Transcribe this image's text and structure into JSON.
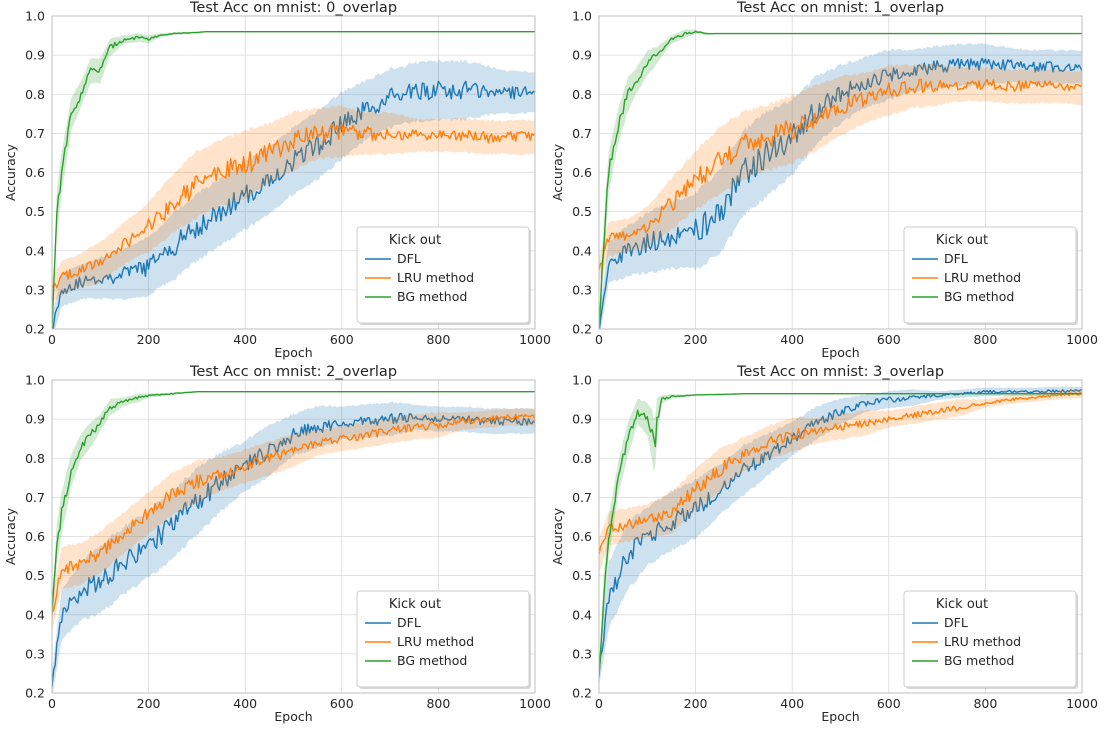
{
  "colors": {
    "dfl": "#1f77b4",
    "lru": "#ff7f0e",
    "bg": "#2ca02c",
    "grid": "#d9d9d9",
    "axes": "#bfbfbf"
  },
  "chart_data": [
    {
      "type": "line",
      "title": "Test Acc on mnist: 0_overlap",
      "xlabel": "Epoch",
      "ylabel": "Accuracy",
      "xlim": [
        0,
        1000
      ],
      "ylim": [
        0.2,
        1.0
      ],
      "xticks": [
        0,
        200,
        400,
        600,
        800,
        1000
      ],
      "yticks": [
        0.2,
        0.3,
        0.4,
        0.5,
        0.6,
        0.7,
        0.8,
        0.9,
        1.0
      ],
      "grid": true,
      "legend": {
        "title": "Kick out",
        "position": "lower right"
      },
      "series": [
        {
          "name": "DFL",
          "color_key": "dfl",
          "x": [
            0,
            20,
            60,
            100,
            150,
            200,
            250,
            300,
            350,
            400,
            450,
            500,
            550,
            600,
            650,
            700,
            750,
            800,
            850,
            900,
            950,
            1000
          ],
          "y": [
            0.2,
            0.3,
            0.32,
            0.33,
            0.34,
            0.36,
            0.41,
            0.46,
            0.5,
            0.54,
            0.58,
            0.63,
            0.67,
            0.72,
            0.76,
            0.79,
            0.805,
            0.81,
            0.81,
            0.81,
            0.805,
            0.805
          ],
          "band": [
            0.03,
            0.04,
            0.04,
            0.05,
            0.06,
            0.07,
            0.08,
            0.08,
            0.08,
            0.08,
            0.08,
            0.08,
            0.08,
            0.08,
            0.07,
            0.07,
            0.07,
            0.07,
            0.07,
            0.06,
            0.05,
            0.05
          ]
        },
        {
          "name": "LRU method",
          "color_key": "lru",
          "x": [
            0,
            20,
            60,
            100,
            150,
            200,
            250,
            300,
            350,
            400,
            450,
            500,
            550,
            600,
            650,
            700,
            750,
            800,
            850,
            900,
            950,
            1000
          ],
          "y": [
            0.3,
            0.33,
            0.35,
            0.37,
            0.42,
            0.46,
            0.52,
            0.57,
            0.6,
            0.62,
            0.65,
            0.68,
            0.7,
            0.705,
            0.7,
            0.7,
            0.695,
            0.695,
            0.695,
            0.69,
            0.69,
            0.69
          ],
          "band": [
            0.03,
            0.04,
            0.04,
            0.05,
            0.05,
            0.06,
            0.07,
            0.08,
            0.08,
            0.08,
            0.07,
            0.07,
            0.06,
            0.06,
            0.05,
            0.05,
            0.04,
            0.04,
            0.04,
            0.04,
            0.04,
            0.04
          ]
        },
        {
          "name": "BG method",
          "color_key": "bg",
          "x": [
            0,
            10,
            20,
            40,
            60,
            80,
            100,
            120,
            150,
            180,
            200,
            220,
            250,
            300,
            320,
            400,
            600,
            800,
            1000
          ],
          "y": [
            0.2,
            0.5,
            0.6,
            0.75,
            0.8,
            0.86,
            0.86,
            0.92,
            0.94,
            0.945,
            0.94,
            0.95,
            0.955,
            0.958,
            0.96,
            0.96,
            0.96,
            0.96,
            0.96
          ],
          "band": [
            0.02,
            0.05,
            0.05,
            0.04,
            0.03,
            0.03,
            0.03,
            0.02,
            0.01,
            0.01,
            0.01,
            0.005,
            0.003,
            0.002,
            0,
            0,
            0,
            0,
            0
          ]
        }
      ]
    },
    {
      "type": "line",
      "title": "Test Acc on mnist: 1_overlap",
      "xlabel": "Epoch",
      "ylabel": "Accuracy",
      "xlim": [
        0,
        1000
      ],
      "ylim": [
        0.2,
        1.0
      ],
      "xticks": [
        0,
        200,
        400,
        600,
        800,
        1000
      ],
      "yticks": [
        0.2,
        0.3,
        0.4,
        0.5,
        0.6,
        0.7,
        0.8,
        0.9,
        1.0
      ],
      "grid": true,
      "legend": {
        "title": "Kick out",
        "position": "lower right"
      },
      "series": [
        {
          "name": "DFL",
          "color_key": "dfl",
          "x": [
            0,
            20,
            60,
            100,
            150,
            200,
            250,
            300,
            350,
            400,
            450,
            500,
            550,
            600,
            650,
            700,
            750,
            800,
            850,
            900,
            950,
            1000
          ],
          "y": [
            0.2,
            0.37,
            0.4,
            0.42,
            0.44,
            0.45,
            0.5,
            0.6,
            0.65,
            0.69,
            0.76,
            0.8,
            0.83,
            0.85,
            0.86,
            0.87,
            0.875,
            0.875,
            0.875,
            0.87,
            0.87,
            0.87
          ],
          "band": [
            0.03,
            0.05,
            0.06,
            0.07,
            0.08,
            0.09,
            0.1,
            0.1,
            0.1,
            0.09,
            0.08,
            0.07,
            0.06,
            0.06,
            0.05,
            0.05,
            0.05,
            0.05,
            0.04,
            0.04,
            0.04,
            0.04
          ]
        },
        {
          "name": "LRU method",
          "color_key": "lru",
          "x": [
            0,
            20,
            60,
            100,
            150,
            200,
            250,
            300,
            350,
            400,
            450,
            500,
            550,
            600,
            650,
            700,
            750,
            800,
            850,
            900,
            950,
            1000
          ],
          "y": [
            0.35,
            0.43,
            0.44,
            0.46,
            0.52,
            0.58,
            0.63,
            0.67,
            0.69,
            0.71,
            0.74,
            0.77,
            0.79,
            0.81,
            0.82,
            0.825,
            0.825,
            0.825,
            0.82,
            0.82,
            0.82,
            0.815
          ],
          "band": [
            0.03,
            0.04,
            0.04,
            0.05,
            0.06,
            0.07,
            0.08,
            0.08,
            0.08,
            0.08,
            0.08,
            0.07,
            0.06,
            0.06,
            0.05,
            0.05,
            0.04,
            0.04,
            0.04,
            0.04,
            0.04,
            0.04
          ]
        },
        {
          "name": "BG method",
          "color_key": "bg",
          "x": [
            0,
            10,
            20,
            40,
            60,
            80,
            100,
            120,
            150,
            180,
            200,
            220,
            240,
            260,
            300,
            400,
            600,
            800,
            1000
          ],
          "y": [
            0.2,
            0.42,
            0.6,
            0.72,
            0.8,
            0.84,
            0.88,
            0.9,
            0.94,
            0.955,
            0.96,
            0.955,
            0.955,
            0.955,
            0.955,
            0.955,
            0.955,
            0.955,
            0.955
          ],
          "band": [
            0.02,
            0.05,
            0.05,
            0.04,
            0.04,
            0.03,
            0.03,
            0.02,
            0.01,
            0.01,
            0.005,
            0.003,
            0,
            0,
            0,
            0,
            0,
            0,
            0
          ]
        }
      ]
    },
    {
      "type": "line",
      "title": "Test Acc on mnist: 2_overlap",
      "xlabel": "Epoch",
      "ylabel": "Accuracy",
      "xlim": [
        0,
        1000
      ],
      "ylim": [
        0.2,
        1.0
      ],
      "xticks": [
        0,
        200,
        400,
        600,
        800,
        1000
      ],
      "yticks": [
        0.2,
        0.3,
        0.4,
        0.5,
        0.6,
        0.7,
        0.8,
        0.9,
        1.0
      ],
      "grid": true,
      "legend": {
        "title": "Kick out",
        "position": "lower right"
      },
      "series": [
        {
          "name": "DFL",
          "color_key": "dfl",
          "x": [
            0,
            20,
            60,
            100,
            150,
            200,
            250,
            300,
            350,
            400,
            450,
            500,
            550,
            600,
            650,
            700,
            750,
            800,
            850,
            900,
            950,
            1000
          ],
          "y": [
            0.22,
            0.4,
            0.46,
            0.49,
            0.54,
            0.58,
            0.63,
            0.69,
            0.74,
            0.78,
            0.82,
            0.86,
            0.88,
            0.89,
            0.895,
            0.9,
            0.905,
            0.9,
            0.9,
            0.895,
            0.895,
            0.895
          ],
          "band": [
            0.03,
            0.06,
            0.07,
            0.08,
            0.08,
            0.08,
            0.08,
            0.08,
            0.07,
            0.06,
            0.06,
            0.05,
            0.05,
            0.04,
            0.04,
            0.04,
            0.03,
            0.03,
            0.03,
            0.03,
            0.03,
            0.03
          ]
        },
        {
          "name": "LRU method",
          "color_key": "lru",
          "x": [
            0,
            20,
            60,
            100,
            150,
            200,
            250,
            300,
            350,
            400,
            450,
            500,
            550,
            600,
            650,
            700,
            750,
            800,
            850,
            900,
            950,
            1000
          ],
          "y": [
            0.4,
            0.52,
            0.53,
            0.56,
            0.61,
            0.66,
            0.71,
            0.74,
            0.76,
            0.78,
            0.8,
            0.82,
            0.84,
            0.85,
            0.86,
            0.87,
            0.88,
            0.885,
            0.895,
            0.9,
            0.905,
            0.905
          ],
          "band": [
            0.04,
            0.05,
            0.05,
            0.05,
            0.05,
            0.05,
            0.05,
            0.05,
            0.04,
            0.04,
            0.04,
            0.04,
            0.03,
            0.03,
            0.03,
            0.03,
            0.03,
            0.03,
            0.02,
            0.02,
            0.02,
            0.02
          ]
        },
        {
          "name": "BG method",
          "color_key": "bg",
          "x": [
            0,
            10,
            20,
            40,
            60,
            80,
            100,
            120,
            150,
            180,
            200,
            250,
            300,
            400,
            600,
            800,
            1000
          ],
          "y": [
            0.4,
            0.58,
            0.66,
            0.77,
            0.83,
            0.86,
            0.89,
            0.93,
            0.945,
            0.955,
            0.96,
            0.965,
            0.97,
            0.97,
            0.97,
            0.97,
            0.97
          ],
          "band": [
            0.03,
            0.05,
            0.05,
            0.04,
            0.03,
            0.03,
            0.02,
            0.02,
            0.01,
            0.01,
            0.005,
            0.003,
            0,
            0,
            0,
            0,
            0
          ]
        }
      ]
    },
    {
      "type": "line",
      "title": "Test Acc on mnist: 3_overlap",
      "xlabel": "Epoch",
      "ylabel": "Accuracy",
      "xlim": [
        0,
        1000
      ],
      "ylim": [
        0.2,
        1.0
      ],
      "xticks": [
        0,
        200,
        400,
        600,
        800,
        1000
      ],
      "yticks": [
        0.2,
        0.3,
        0.4,
        0.5,
        0.6,
        0.7,
        0.8,
        0.9,
        1.0
      ],
      "grid": true,
      "legend": {
        "title": "Kick out",
        "position": "lower right"
      },
      "series": [
        {
          "name": "DFL",
          "color_key": "dfl",
          "x": [
            0,
            20,
            60,
            100,
            150,
            200,
            250,
            300,
            350,
            400,
            450,
            500,
            550,
            600,
            650,
            700,
            750,
            800,
            850,
            900,
            950,
            1000
          ],
          "y": [
            0.25,
            0.45,
            0.55,
            0.6,
            0.64,
            0.67,
            0.72,
            0.77,
            0.81,
            0.85,
            0.89,
            0.92,
            0.94,
            0.95,
            0.955,
            0.96,
            0.965,
            0.97,
            0.97,
            0.97,
            0.972,
            0.972
          ],
          "band": [
            0.03,
            0.08,
            0.08,
            0.07,
            0.07,
            0.07,
            0.06,
            0.06,
            0.05,
            0.04,
            0.04,
            0.03,
            0.02,
            0.02,
            0.02,
            0.01,
            0.01,
            0.01,
            0.01,
            0.01,
            0.01,
            0.01
          ]
        },
        {
          "name": "LRU method",
          "color_key": "lru",
          "x": [
            0,
            20,
            60,
            100,
            150,
            200,
            250,
            300,
            350,
            400,
            450,
            500,
            550,
            600,
            650,
            700,
            750,
            800,
            850,
            900,
            950,
            1000
          ],
          "y": [
            0.55,
            0.62,
            0.63,
            0.64,
            0.66,
            0.72,
            0.77,
            0.81,
            0.84,
            0.86,
            0.87,
            0.88,
            0.89,
            0.9,
            0.91,
            0.92,
            0.93,
            0.94,
            0.95,
            0.955,
            0.962,
            0.965
          ],
          "band": [
            0.04,
            0.04,
            0.04,
            0.04,
            0.05,
            0.05,
            0.05,
            0.04,
            0.04,
            0.04,
            0.03,
            0.03,
            0.03,
            0.02,
            0.02,
            0.02,
            0.02,
            0.01,
            0.01,
            0.01,
            0.01,
            0.01
          ]
        },
        {
          "name": "BG method",
          "color_key": "bg",
          "x": [
            0,
            10,
            20,
            40,
            60,
            80,
            100,
            110,
            115,
            120,
            130,
            150,
            180,
            200,
            250,
            300,
            400,
            600,
            800,
            1000
          ],
          "y": [
            0.24,
            0.45,
            0.6,
            0.75,
            0.85,
            0.92,
            0.9,
            0.86,
            0.82,
            0.9,
            0.95,
            0.958,
            0.96,
            0.962,
            0.963,
            0.965,
            0.965,
            0.965,
            0.965,
            0.965
          ],
          "band": [
            0.02,
            0.05,
            0.05,
            0.04,
            0.04,
            0.03,
            0.04,
            0.06,
            0.06,
            0.05,
            0.01,
            0.005,
            0.003,
            0,
            0,
            0,
            0,
            0,
            0,
            0
          ]
        }
      ]
    }
  ]
}
